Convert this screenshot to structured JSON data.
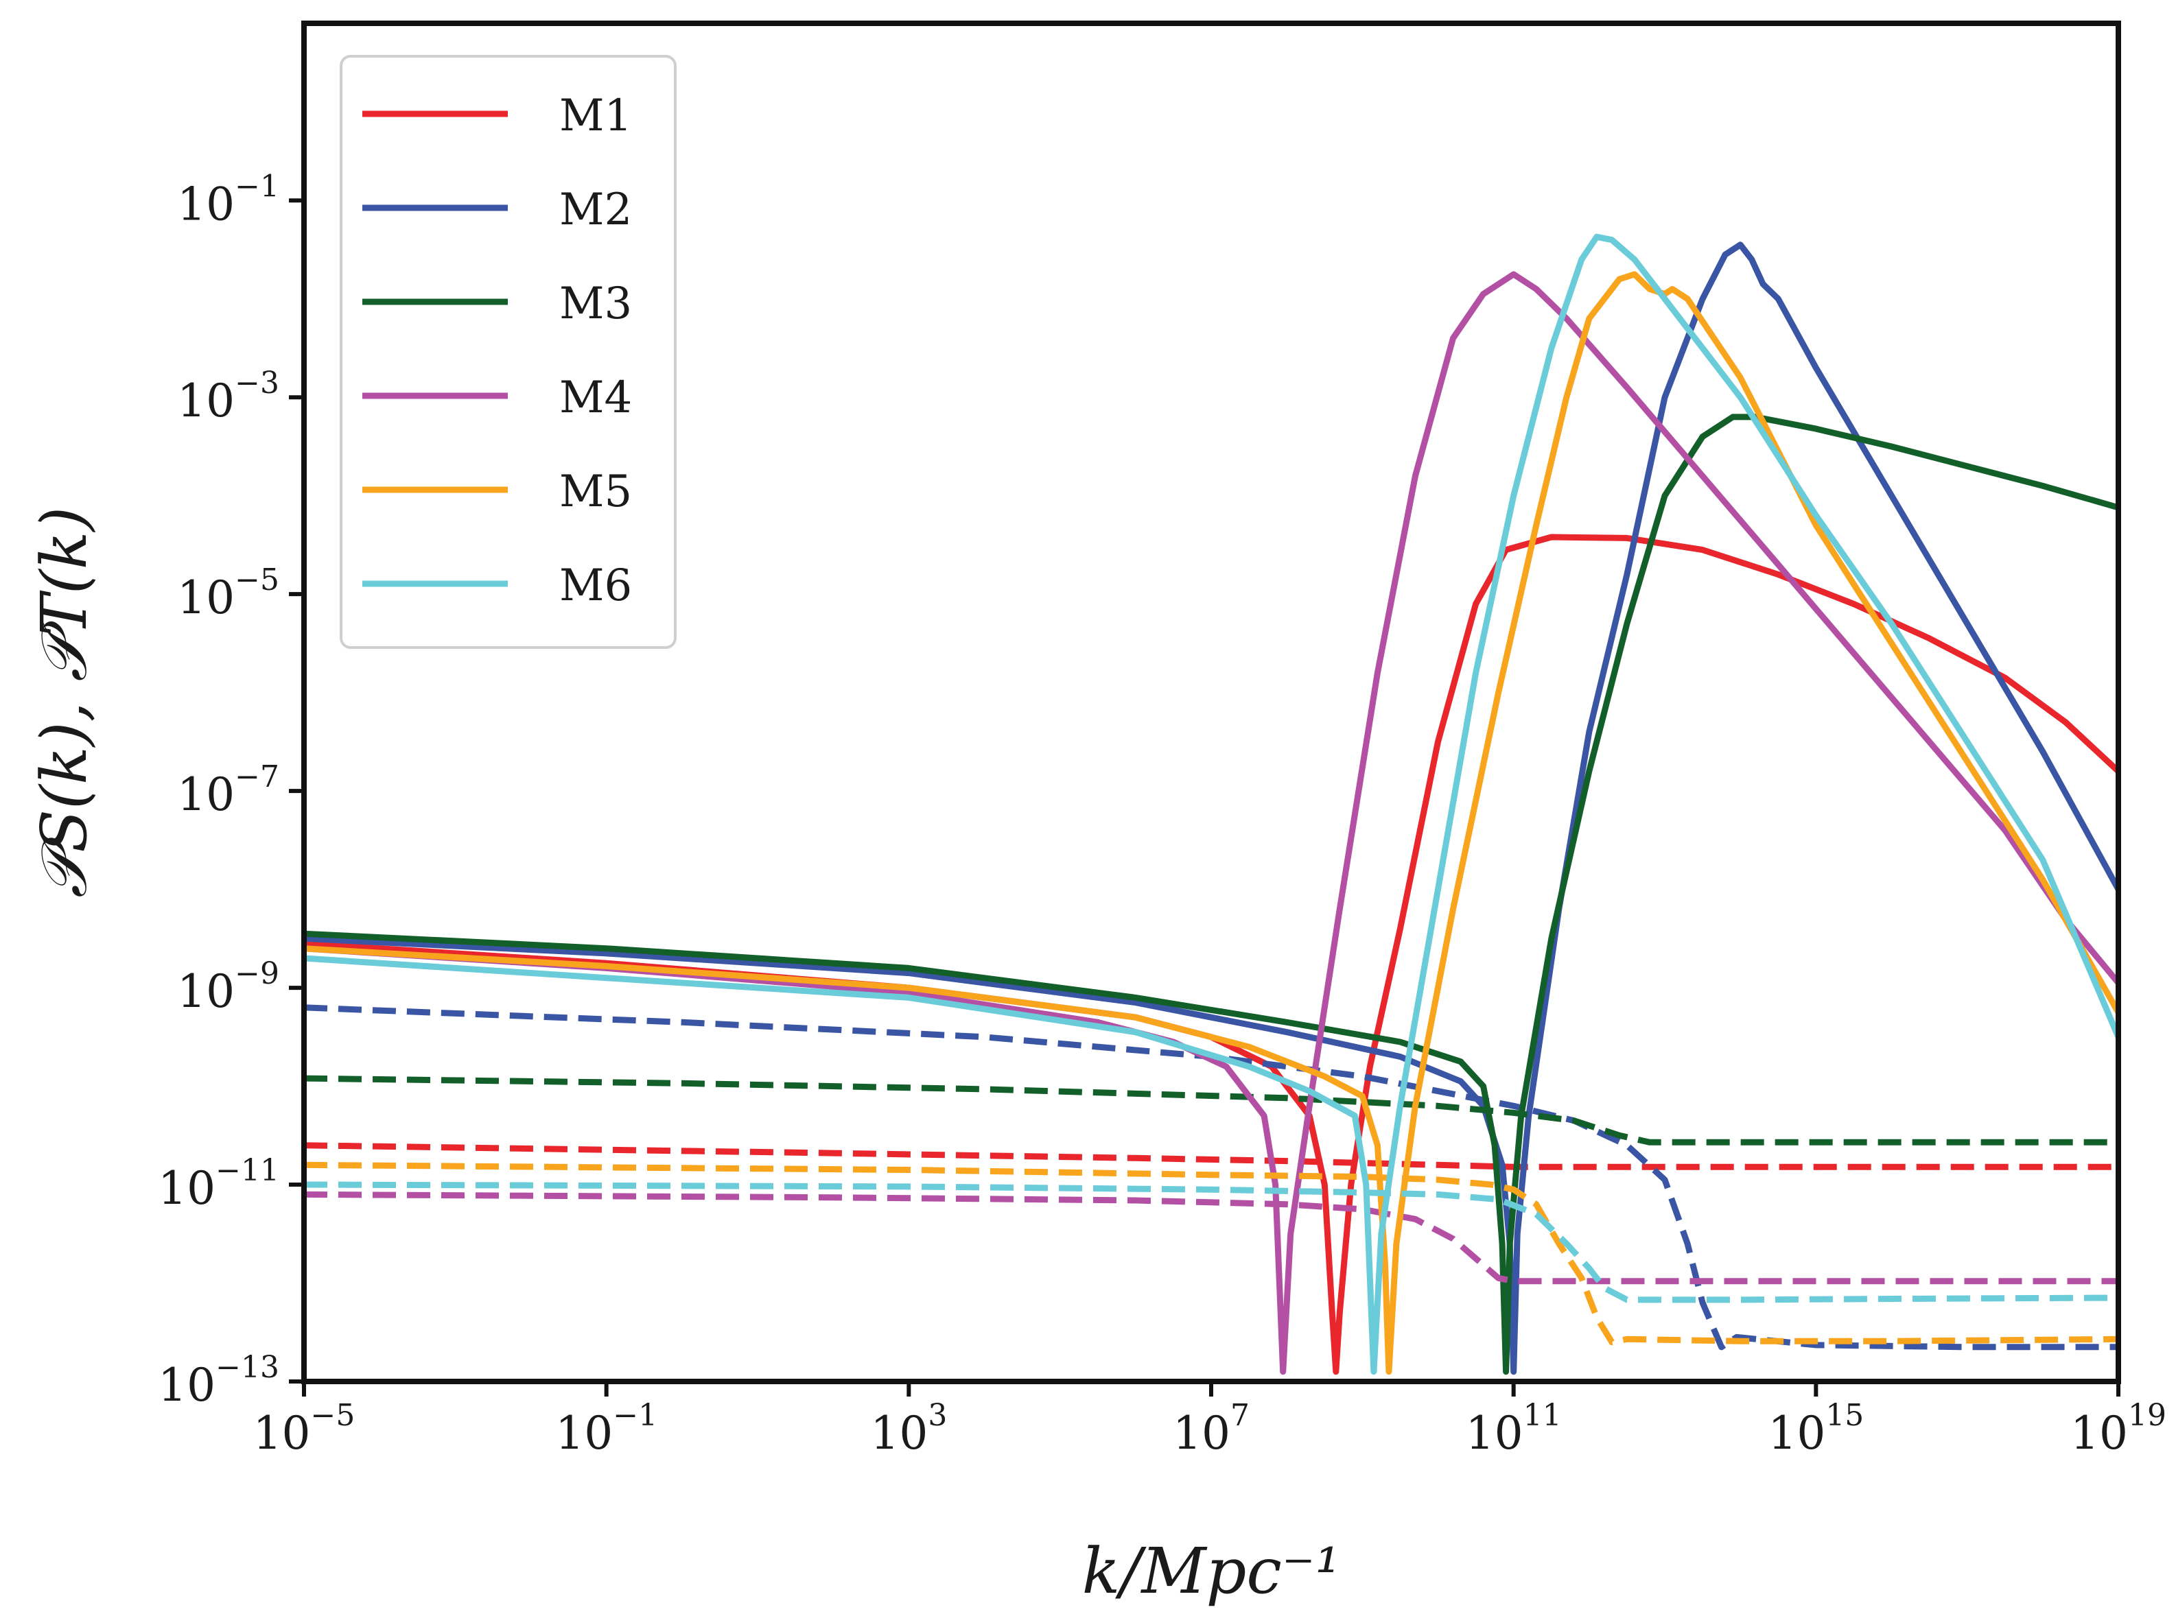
{
  "chart_data": {
    "type": "line",
    "title": "",
    "xlabel": "k/Mpc⁻¹",
    "ylabel": "𝒫S(k), 𝒫T(k)",
    "x_scale": "log",
    "y_scale": "log",
    "xlim_log10": [
      -5,
      19
    ],
    "ylim_log10": [
      -13,
      0.8
    ],
    "x_ticks": [
      {
        "base": "10",
        "exp": "−5",
        "log": -5
      },
      {
        "base": "10",
        "exp": "−1",
        "log": -1
      },
      {
        "base": "10",
        "exp": "3",
        "log": 3
      },
      {
        "base": "10",
        "exp": "7",
        "log": 7
      },
      {
        "base": "10",
        "exp": "11",
        "log": 11
      },
      {
        "base": "10",
        "exp": "15",
        "log": 15
      },
      {
        "base": "10",
        "exp": "19",
        "log": 19
      }
    ],
    "y_ticks": [
      {
        "base": "10",
        "exp": "−1",
        "log": -1
      },
      {
        "base": "10",
        "exp": "−3",
        "log": -3
      },
      {
        "base": "10",
        "exp": "−5",
        "log": -5
      },
      {
        "base": "10",
        "exp": "−7",
        "log": -7
      },
      {
        "base": "10",
        "exp": "−9",
        "log": -9
      },
      {
        "base": "10",
        "exp": "−11",
        "log": -11
      },
      {
        "base": "10",
        "exp": "−13",
        "log": -13
      }
    ],
    "legend_position": "top-left",
    "grid": false,
    "note": "Coordinates are [log10 k, log10 P]. Solid = scalar spectrum P_S, dashed = tensor spectrum P_T.",
    "series": [
      {
        "name": "M1",
        "color": "#e8262c",
        "scalar": [
          [
            -5,
            -8.55
          ],
          [
            -1,
            -8.75
          ],
          [
            3,
            -9.0
          ],
          [
            6,
            -9.3
          ],
          [
            7,
            -9.5
          ],
          [
            7.8,
            -9.8
          ],
          [
            8.3,
            -10.3
          ],
          [
            8.5,
            -11.0
          ],
          [
            8.6,
            -12.3
          ],
          [
            8.65,
            -12.9
          ],
          [
            8.7,
            -12.3
          ],
          [
            8.85,
            -11.0
          ],
          [
            9.1,
            -9.8
          ],
          [
            9.5,
            -8.4
          ],
          [
            10,
            -6.5
          ],
          [
            10.5,
            -5.1
          ],
          [
            10.9,
            -4.55
          ],
          [
            11.5,
            -4.42
          ],
          [
            12.5,
            -4.43
          ],
          [
            13.5,
            -4.55
          ],
          [
            14.5,
            -4.8
          ],
          [
            15.5,
            -5.1
          ],
          [
            16.5,
            -5.45
          ],
          [
            17.5,
            -5.85
          ],
          [
            18.3,
            -6.3
          ],
          [
            19,
            -6.8
          ]
        ],
        "tensor": [
          [
            -5,
            -10.6
          ],
          [
            2,
            -10.68
          ],
          [
            6,
            -10.73
          ],
          [
            8,
            -10.76
          ],
          [
            9,
            -10.78
          ],
          [
            10,
            -10.8
          ],
          [
            11,
            -10.82
          ],
          [
            13,
            -10.82
          ],
          [
            16,
            -10.82
          ],
          [
            19,
            -10.82
          ]
        ]
      },
      {
        "name": "M2",
        "color": "#3a55a4",
        "scalar": [
          [
            -5,
            -8.5
          ],
          [
            -1,
            -8.65
          ],
          [
            3,
            -8.85
          ],
          [
            6,
            -9.15
          ],
          [
            8,
            -9.45
          ],
          [
            9.5,
            -9.7
          ],
          [
            10.3,
            -9.95
          ],
          [
            10.6,
            -10.2
          ],
          [
            10.85,
            -10.8
          ],
          [
            10.95,
            -11.6
          ],
          [
            11.0,
            -12.9
          ],
          [
            11.05,
            -11.5
          ],
          [
            11.2,
            -10.3
          ],
          [
            11.6,
            -8.2
          ],
          [
            12,
            -6.4
          ],
          [
            12.5,
            -4.8
          ],
          [
            13,
            -3.0
          ],
          [
            13.5,
            -2.0
          ],
          [
            13.8,
            -1.55
          ],
          [
            14.0,
            -1.45
          ],
          [
            14.15,
            -1.6
          ],
          [
            14.3,
            -1.85
          ],
          [
            14.5,
            -2.0
          ],
          [
            15,
            -2.7
          ],
          [
            16,
            -4.0
          ],
          [
            17,
            -5.3
          ],
          [
            18,
            -6.6
          ],
          [
            19,
            -8.0
          ]
        ],
        "tensor": [
          [
            -5,
            -9.2
          ],
          [
            0,
            -9.35
          ],
          [
            4,
            -9.5
          ],
          [
            7,
            -9.7
          ],
          [
            9,
            -9.9
          ],
          [
            10,
            -10.05
          ],
          [
            11,
            -10.2
          ],
          [
            11.8,
            -10.35
          ],
          [
            12.5,
            -10.6
          ],
          [
            13,
            -10.95
          ],
          [
            13.3,
            -11.6
          ],
          [
            13.5,
            -12.2
          ],
          [
            13.75,
            -12.65
          ],
          [
            13.95,
            -12.55
          ],
          [
            15,
            -12.63
          ],
          [
            17,
            -12.65
          ],
          [
            19,
            -12.65
          ]
        ]
      },
      {
        "name": "M3",
        "color": "#135f2a",
        "scalar": [
          [
            -5,
            -8.45
          ],
          [
            -1,
            -8.6
          ],
          [
            3,
            -8.8
          ],
          [
            6,
            -9.1
          ],
          [
            8,
            -9.35
          ],
          [
            9.5,
            -9.55
          ],
          [
            10.3,
            -9.75
          ],
          [
            10.6,
            -10.0
          ],
          [
            10.75,
            -10.6
          ],
          [
            10.85,
            -11.6
          ],
          [
            10.9,
            -12.9
          ],
          [
            10.95,
            -11.6
          ],
          [
            11.1,
            -10.3
          ],
          [
            11.5,
            -8.5
          ],
          [
            12,
            -6.8
          ],
          [
            12.5,
            -5.3
          ],
          [
            13,
            -4.0
          ],
          [
            13.5,
            -3.4
          ],
          [
            13.9,
            -3.2
          ],
          [
            14.2,
            -3.2
          ],
          [
            15,
            -3.32
          ],
          [
            16,
            -3.5
          ],
          [
            17,
            -3.7
          ],
          [
            18,
            -3.9
          ],
          [
            19,
            -4.12
          ]
        ],
        "tensor": [
          [
            -5,
            -9.92
          ],
          [
            0,
            -9.97
          ],
          [
            4,
            -10.03
          ],
          [
            8,
            -10.12
          ],
          [
            10,
            -10.2
          ],
          [
            11,
            -10.27
          ],
          [
            11.8,
            -10.35
          ],
          [
            12.4,
            -10.5
          ],
          [
            12.8,
            -10.57
          ],
          [
            15,
            -10.57
          ],
          [
            19,
            -10.57
          ]
        ]
      },
      {
        "name": "M4",
        "color": "#b350a4",
        "scalar": [
          [
            -5,
            -8.6
          ],
          [
            -1,
            -8.8
          ],
          [
            3,
            -9.05
          ],
          [
            5.5,
            -9.35
          ],
          [
            6.5,
            -9.55
          ],
          [
            7.2,
            -9.8
          ],
          [
            7.7,
            -10.3
          ],
          [
            7.85,
            -11.0
          ],
          [
            7.95,
            -12.9
          ],
          [
            8.05,
            -11.5
          ],
          [
            8.3,
            -10.2
          ],
          [
            8.7,
            -8.2
          ],
          [
            9.2,
            -5.8
          ],
          [
            9.7,
            -3.8
          ],
          [
            10.2,
            -2.4
          ],
          [
            10.6,
            -1.95
          ],
          [
            11.0,
            -1.75
          ],
          [
            11.3,
            -1.9
          ],
          [
            11.7,
            -2.2
          ],
          [
            12.5,
            -2.9
          ],
          [
            13.5,
            -3.8
          ],
          [
            14.5,
            -4.7
          ],
          [
            15.5,
            -5.6
          ],
          [
            16.5,
            -6.5
          ],
          [
            17.5,
            -7.4
          ],
          [
            18.3,
            -8.3
          ],
          [
            19,
            -8.95
          ]
        ],
        "tensor": [
          [
            -5,
            -11.1
          ],
          [
            2,
            -11.13
          ],
          [
            6,
            -11.16
          ],
          [
            8,
            -11.2
          ],
          [
            9,
            -11.25
          ],
          [
            9.7,
            -11.35
          ],
          [
            10.2,
            -11.55
          ],
          [
            10.5,
            -11.75
          ],
          [
            10.8,
            -11.95
          ],
          [
            11.0,
            -11.98
          ],
          [
            13,
            -11.98
          ],
          [
            16,
            -11.98
          ],
          [
            19,
            -11.98
          ]
        ]
      },
      {
        "name": "M5",
        "color": "#f8a51d",
        "scalar": [
          [
            -5,
            -8.6
          ],
          [
            -1,
            -8.78
          ],
          [
            3,
            -9.0
          ],
          [
            6,
            -9.3
          ],
          [
            7.5,
            -9.6
          ],
          [
            8.5,
            -9.9
          ],
          [
            9.0,
            -10.1
          ],
          [
            9.2,
            -10.6
          ],
          [
            9.3,
            -11.8
          ],
          [
            9.35,
            -12.9
          ],
          [
            9.45,
            -11.6
          ],
          [
            9.7,
            -10.2
          ],
          [
            10.2,
            -8.2
          ],
          [
            10.8,
            -6.0
          ],
          [
            11.3,
            -4.3
          ],
          [
            11.7,
            -3.0
          ],
          [
            12.0,
            -2.2
          ],
          [
            12.4,
            -1.8
          ],
          [
            12.6,
            -1.75
          ],
          [
            12.8,
            -1.9
          ],
          [
            13.0,
            -1.95
          ],
          [
            13.1,
            -1.9
          ],
          [
            13.3,
            -2.0
          ],
          [
            14,
            -2.8
          ],
          [
            15,
            -4.3
          ],
          [
            16,
            -5.5
          ],
          [
            17,
            -6.7
          ],
          [
            18,
            -7.9
          ],
          [
            19,
            -9.25
          ]
        ],
        "tensor": [
          [
            -5,
            -10.8
          ],
          [
            3,
            -10.85
          ],
          [
            7,
            -10.9
          ],
          [
            9,
            -10.92
          ],
          [
            10,
            -10.95
          ],
          [
            10.7,
            -11.0
          ],
          [
            11.0,
            -11.05
          ],
          [
            11.3,
            -11.2
          ],
          [
            11.6,
            -11.6
          ],
          [
            11.9,
            -11.95
          ],
          [
            12.1,
            -12.35
          ],
          [
            12.3,
            -12.6
          ],
          [
            12.5,
            -12.57
          ],
          [
            14,
            -12.59
          ],
          [
            16,
            -12.59
          ],
          [
            19,
            -12.57
          ]
        ]
      },
      {
        "name": "M6",
        "color": "#6accd9",
        "scalar": [
          [
            -5,
            -8.7
          ],
          [
            -1,
            -8.9
          ],
          [
            3,
            -9.1
          ],
          [
            6,
            -9.45
          ],
          [
            7.5,
            -9.8
          ],
          [
            8.3,
            -10.05
          ],
          [
            8.9,
            -10.3
          ],
          [
            9.05,
            -11.0
          ],
          [
            9.15,
            -12.9
          ],
          [
            9.25,
            -11.5
          ],
          [
            9.5,
            -10.2
          ],
          [
            10.0,
            -8.0
          ],
          [
            10.5,
            -5.8
          ],
          [
            11.0,
            -4.0
          ],
          [
            11.5,
            -2.5
          ],
          [
            11.9,
            -1.6
          ],
          [
            12.1,
            -1.37
          ],
          [
            12.3,
            -1.4
          ],
          [
            12.6,
            -1.6
          ],
          [
            13,
            -2.0
          ],
          [
            14,
            -3.0
          ],
          [
            15,
            -4.2
          ],
          [
            16,
            -5.3
          ],
          [
            17,
            -6.5
          ],
          [
            18,
            -7.7
          ],
          [
            19,
            -9.5
          ]
        ],
        "tensor": [
          [
            -5,
            -11.0
          ],
          [
            3,
            -11.02
          ],
          [
            7,
            -11.05
          ],
          [
            9,
            -11.08
          ],
          [
            10,
            -11.1
          ],
          [
            10.8,
            -11.15
          ],
          [
            11.3,
            -11.3
          ],
          [
            11.7,
            -11.6
          ],
          [
            12.0,
            -11.85
          ],
          [
            12.2,
            -12.05
          ],
          [
            12.5,
            -12.17
          ],
          [
            14,
            -12.17
          ],
          [
            16,
            -12.16
          ],
          [
            19,
            -12.15
          ]
        ]
      }
    ]
  }
}
